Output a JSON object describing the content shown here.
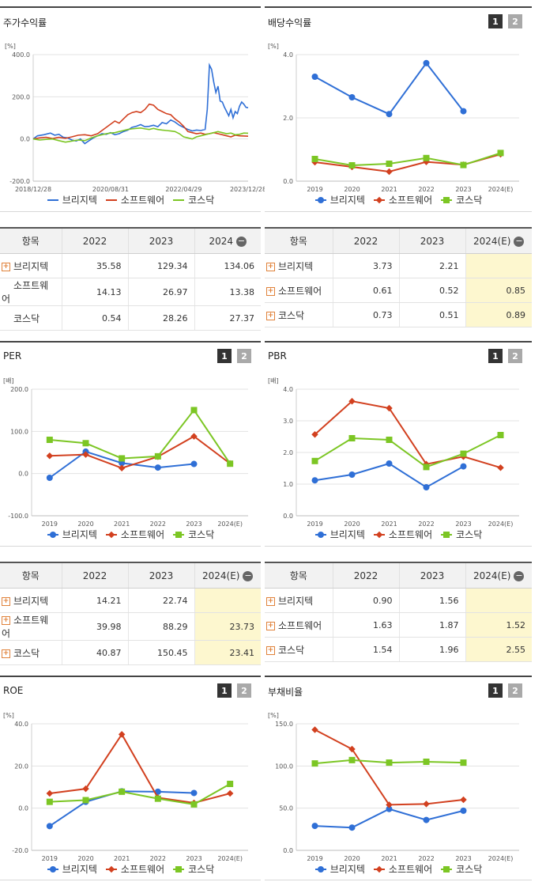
{
  "legend": [
    "브리지텍",
    "소프트웨어",
    "코스닥"
  ],
  "colors": {
    "s1": "#2f6fd6",
    "s2": "#d2401f",
    "s3": "#7cc624"
  },
  "page_buttons": [
    "1",
    "2"
  ],
  "panels": {
    "stock": {
      "title": "주가수익률",
      "unit": "[%]"
    },
    "div": {
      "title": "배당수익률",
      "unit": "[%]"
    },
    "per": {
      "title": "PER",
      "unit": "[배]"
    },
    "pbr": {
      "title": "PBR",
      "unit": "[배]"
    },
    "roe": {
      "title": "ROE",
      "unit": "[%]"
    },
    "debt": {
      "title": "부채비율",
      "unit": "[%]"
    }
  },
  "tables": {
    "t1": {
      "header": [
        "항목",
        "2022",
        "2023",
        "2024"
      ],
      "rows": [
        {
          "name": "브리지텍",
          "values": [
            "35.58",
            "129.34",
            "134.06"
          ]
        },
        {
          "name": "소프트웨어",
          "values": [
            "14.13",
            "26.97",
            "13.38"
          ]
        },
        {
          "name": "코스닥",
          "values": [
            "0.54",
            "28.26",
            "27.37"
          ]
        }
      ]
    },
    "t2": {
      "header": [
        "항목",
        "2022",
        "2023",
        "2024(E)"
      ],
      "rows": [
        {
          "name": "브리지텍",
          "values": [
            "3.73",
            "2.21",
            ""
          ]
        },
        {
          "name": "소프트웨어",
          "values": [
            "0.61",
            "0.52",
            "0.85"
          ]
        },
        {
          "name": "코스닥",
          "values": [
            "0.73",
            "0.51",
            "0.89"
          ]
        }
      ]
    },
    "t3": {
      "header": [
        "항목",
        "2022",
        "2023",
        "2024(E)"
      ],
      "rows": [
        {
          "name": "브리지텍",
          "values": [
            "14.21",
            "22.74",
            ""
          ]
        },
        {
          "name": "소프트웨어",
          "values": [
            "39.98",
            "88.29",
            "23.73"
          ]
        },
        {
          "name": "코스닥",
          "values": [
            "40.87",
            "150.45",
            "23.41"
          ]
        }
      ]
    },
    "t4": {
      "header": [
        "항목",
        "2022",
        "2023",
        "2024(E)"
      ],
      "rows": [
        {
          "name": "브리지텍",
          "values": [
            "0.90",
            "1.56",
            ""
          ]
        },
        {
          "name": "소프트웨어",
          "values": [
            "1.63",
            "1.87",
            "1.52"
          ]
        },
        {
          "name": "코스닥",
          "values": [
            "1.54",
            "1.96",
            "2.55"
          ]
        }
      ]
    }
  },
  "chart_data": [
    {
      "id": "stock",
      "type": "line",
      "title": "주가수익률",
      "ylabel": "[%]",
      "ylim": [
        -200,
        400
      ],
      "yticks": [
        "-200.0",
        "0.0",
        "200.0",
        "400.0"
      ],
      "xticks": [
        "2018/12/28",
        "2020/08/31",
        "2022/04/29",
        "2023/12/28"
      ],
      "x_range": [
        "2018/12/28",
        "2024/06"
      ],
      "series": [
        {
          "name": "브리지텍",
          "points": [
            [
              0,
              0
            ],
            [
              0.02,
              15
            ],
            [
              0.05,
              20
            ],
            [
              0.08,
              28
            ],
            [
              0.1,
              18
            ],
            [
              0.12,
              22
            ],
            [
              0.14,
              8
            ],
            [
              0.16,
              5
            ],
            [
              0.18,
              -5
            ],
            [
              0.2,
              -10
            ],
            [
              0.22,
              0
            ],
            [
              0.24,
              -22
            ],
            [
              0.26,
              -8
            ],
            [
              0.28,
              5
            ],
            [
              0.3,
              15
            ],
            [
              0.32,
              25
            ],
            [
              0.34,
              22
            ],
            [
              0.36,
              30
            ],
            [
              0.38,
              20
            ],
            [
              0.4,
              25
            ],
            [
              0.42,
              35
            ],
            [
              0.44,
              42
            ],
            [
              0.46,
              55
            ],
            [
              0.48,
              60
            ],
            [
              0.5,
              68
            ],
            [
              0.52,
              58
            ],
            [
              0.54,
              60
            ],
            [
              0.56,
              65
            ],
            [
              0.58,
              58
            ],
            [
              0.6,
              78
            ],
            [
              0.62,
              72
            ],
            [
              0.64,
              90
            ],
            [
              0.66,
              80
            ],
            [
              0.68,
              65
            ],
            [
              0.7,
              55
            ],
            [
              0.72,
              45
            ],
            [
              0.74,
              38
            ],
            [
              0.76,
              42
            ],
            [
              0.78,
              40
            ],
            [
              0.8,
              45
            ],
            [
              0.81,
              140
            ],
            [
              0.82,
              350
            ],
            [
              0.83,
              330
            ],
            [
              0.84,
              270
            ],
            [
              0.85,
              220
            ],
            [
              0.86,
              250
            ],
            [
              0.87,
              180
            ],
            [
              0.88,
              175
            ],
            [
              0.89,
              150
            ],
            [
              0.9,
              130
            ],
            [
              0.91,
              110
            ],
            [
              0.92,
              140
            ],
            [
              0.93,
              100
            ],
            [
              0.94,
              130
            ],
            [
              0.95,
              120
            ],
            [
              0.96,
              155
            ],
            [
              0.97,
              175
            ],
            [
              0.98,
              165
            ],
            [
              0.99,
              150
            ],
            [
              1.0,
              148
            ]
          ]
        },
        {
          "name": "소프트웨어",
          "points": [
            [
              0,
              0
            ],
            [
              0.03,
              5
            ],
            [
              0.06,
              8
            ],
            [
              0.09,
              2
            ],
            [
              0.12,
              8
            ],
            [
              0.15,
              3
            ],
            [
              0.18,
              10
            ],
            [
              0.21,
              18
            ],
            [
              0.24,
              20
            ],
            [
              0.27,
              15
            ],
            [
              0.3,
              25
            ],
            [
              0.32,
              40
            ],
            [
              0.34,
              55
            ],
            [
              0.36,
              70
            ],
            [
              0.38,
              85
            ],
            [
              0.4,
              75
            ],
            [
              0.42,
              95
            ],
            [
              0.44,
              115
            ],
            [
              0.46,
              125
            ],
            [
              0.48,
              130
            ],
            [
              0.5,
              125
            ],
            [
              0.52,
              140
            ],
            [
              0.54,
              165
            ],
            [
              0.56,
              160
            ],
            [
              0.58,
              140
            ],
            [
              0.6,
              130
            ],
            [
              0.62,
              120
            ],
            [
              0.64,
              115
            ],
            [
              0.66,
              95
            ],
            [
              0.68,
              80
            ],
            [
              0.7,
              60
            ],
            [
              0.72,
              35
            ],
            [
              0.74,
              30
            ],
            [
              0.76,
              25
            ],
            [
              0.78,
              28
            ],
            [
              0.8,
              22
            ],
            [
              0.82,
              25
            ],
            [
              0.84,
              30
            ],
            [
              0.86,
              25
            ],
            [
              0.88,
              20
            ],
            [
              0.9,
              15
            ],
            [
              0.92,
              10
            ],
            [
              0.94,
              18
            ],
            [
              0.96,
              15
            ],
            [
              0.98,
              14
            ],
            [
              1.0,
              13
            ]
          ]
        },
        {
          "name": "코스닥",
          "points": [
            [
              0,
              0
            ],
            [
              0.03,
              -5
            ],
            [
              0.06,
              -2
            ],
            [
              0.09,
              0
            ],
            [
              0.12,
              -8
            ],
            [
              0.15,
              -15
            ],
            [
              0.18,
              -10
            ],
            [
              0.21,
              -5
            ],
            [
              0.24,
              -8
            ],
            [
              0.27,
              5
            ],
            [
              0.3,
              15
            ],
            [
              0.32,
              20
            ],
            [
              0.34,
              25
            ],
            [
              0.36,
              28
            ],
            [
              0.38,
              30
            ],
            [
              0.4,
              35
            ],
            [
              0.42,
              40
            ],
            [
              0.44,
              45
            ],
            [
              0.46,
              48
            ],
            [
              0.48,
              50
            ],
            [
              0.5,
              52
            ],
            [
              0.52,
              48
            ],
            [
              0.54,
              45
            ],
            [
              0.56,
              50
            ],
            [
              0.58,
              45
            ],
            [
              0.6,
              42
            ],
            [
              0.62,
              40
            ],
            [
              0.64,
              38
            ],
            [
              0.66,
              35
            ],
            [
              0.68,
              25
            ],
            [
              0.7,
              10
            ],
            [
              0.72,
              5
            ],
            [
              0.74,
              0
            ],
            [
              0.76,
              10
            ],
            [
              0.78,
              15
            ],
            [
              0.8,
              20
            ],
            [
              0.82,
              25
            ],
            [
              0.84,
              30
            ],
            [
              0.86,
              35
            ],
            [
              0.88,
              30
            ],
            [
              0.9,
              25
            ],
            [
              0.92,
              28
            ],
            [
              0.94,
              20
            ],
            [
              0.96,
              22
            ],
            [
              0.98,
              28
            ],
            [
              1.0,
              27
            ]
          ]
        }
      ]
    },
    {
      "id": "div",
      "type": "line",
      "title": "배당수익률",
      "ylabel": "[%]",
      "ylim": [
        0,
        4
      ],
      "yticks": [
        "0.0",
        "2.0",
        "4.0"
      ],
      "categories": [
        "2019",
        "2020",
        "2021",
        "2022",
        "2023",
        "2024(E)"
      ],
      "series": [
        {
          "name": "브리지텍",
          "values": [
            3.3,
            2.65,
            2.12,
            3.73,
            2.21,
            null
          ]
        },
        {
          "name": "소프트웨어",
          "values": [
            0.6,
            0.45,
            0.3,
            0.61,
            0.52,
            0.85
          ]
        },
        {
          "name": "코스닥",
          "values": [
            0.7,
            0.5,
            0.55,
            0.73,
            0.51,
            0.89
          ]
        }
      ]
    },
    {
      "id": "per",
      "type": "line",
      "title": "PER",
      "ylabel": "[배]",
      "ylim": [
        -100,
        200
      ],
      "yticks": [
        "-100.0",
        "0.0",
        "100.0",
        "200.0"
      ],
      "categories": [
        "2019",
        "2020",
        "2021",
        "2022",
        "2023",
        "2024(E)"
      ],
      "series": [
        {
          "name": "브리지텍",
          "values": [
            -10,
            52,
            25,
            14.21,
            22.74,
            null
          ]
        },
        {
          "name": "소프트웨어",
          "values": [
            42,
            45,
            13,
            39.98,
            88.29,
            23.73
          ]
        },
        {
          "name": "코스닥",
          "values": [
            80,
            72,
            36,
            40.87,
            150.45,
            23.41
          ]
        }
      ]
    },
    {
      "id": "pbr",
      "type": "line",
      "title": "PBR",
      "ylabel": "[배]",
      "ylim": [
        0,
        4
      ],
      "yticks": [
        "0.0",
        "1.0",
        "2.0",
        "3.0",
        "4.0"
      ],
      "categories": [
        "2019",
        "2020",
        "2021",
        "2022",
        "2023",
        "2024(E)"
      ],
      "series": [
        {
          "name": "브리지텍",
          "values": [
            1.12,
            1.3,
            1.65,
            0.9,
            1.56,
            null
          ]
        },
        {
          "name": "소프트웨어",
          "values": [
            2.57,
            3.62,
            3.4,
            1.63,
            1.87,
            1.52
          ]
        },
        {
          "name": "코스닥",
          "values": [
            1.73,
            2.45,
            2.4,
            1.54,
            1.96,
            2.55
          ]
        }
      ]
    },
    {
      "id": "roe",
      "type": "line",
      "title": "ROE",
      "ylabel": "[%]",
      "ylim": [
        -20,
        40
      ],
      "yticks": [
        "-20.0",
        "0.0",
        "20.0",
        "40.0"
      ],
      "categories": [
        "2019",
        "2020",
        "2021",
        "2022",
        "2023",
        "2024(E)"
      ],
      "series": [
        {
          "name": "브리지텍",
          "values": [
            -8.5,
            3,
            8,
            7.8,
            7.2,
            null
          ]
        },
        {
          "name": "소프트웨어",
          "values": [
            7,
            9.2,
            35,
            5,
            2.5,
            7
          ]
        },
        {
          "name": "코스닥",
          "values": [
            3,
            3.8,
            7.8,
            4.5,
            1.8,
            11.5
          ]
        }
      ]
    },
    {
      "id": "debt",
      "type": "line",
      "title": "부채비율",
      "ylabel": "[%]",
      "ylim": [
        0,
        150
      ],
      "yticks": [
        "0.0",
        "50.0",
        "100.0",
        "150.0"
      ],
      "categories": [
        "2019",
        "2020",
        "2021",
        "2022",
        "2023",
        "2024(E)"
      ],
      "series": [
        {
          "name": "브리지텍",
          "values": [
            29,
            27,
            49,
            36,
            47,
            null
          ]
        },
        {
          "name": "소프트웨어",
          "values": [
            143,
            120,
            54,
            55,
            60,
            null
          ]
        },
        {
          "name": "코스닥",
          "values": [
            103,
            107,
            104,
            105,
            104,
            null
          ]
        }
      ]
    }
  ]
}
